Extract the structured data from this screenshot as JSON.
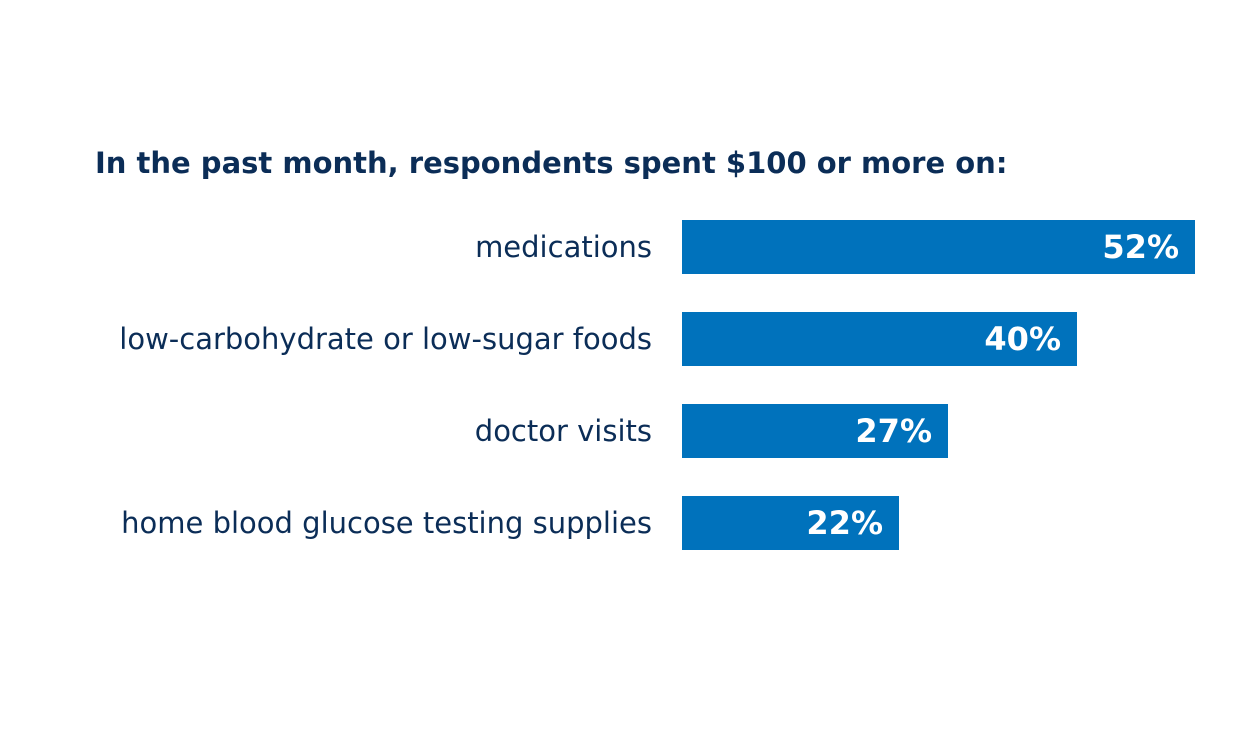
{
  "chart_data": {
    "type": "bar",
    "orientation": "horizontal",
    "title": "In the past month, respondents spent $100 or more on:",
    "categories": [
      "medications",
      "low-carbohydrate or low-sugar foods",
      "doctor visits",
      "home blood glucose testing supplies"
    ],
    "values": [
      52,
      40,
      27,
      22
    ],
    "value_labels": [
      "52%",
      "40%",
      "27%",
      "22%"
    ],
    "unit": "%",
    "grid": false,
    "legend": "none",
    "colors": {
      "bar": "#0072bc",
      "text": "#0b2d57",
      "value_text": "#ffffff"
    }
  }
}
